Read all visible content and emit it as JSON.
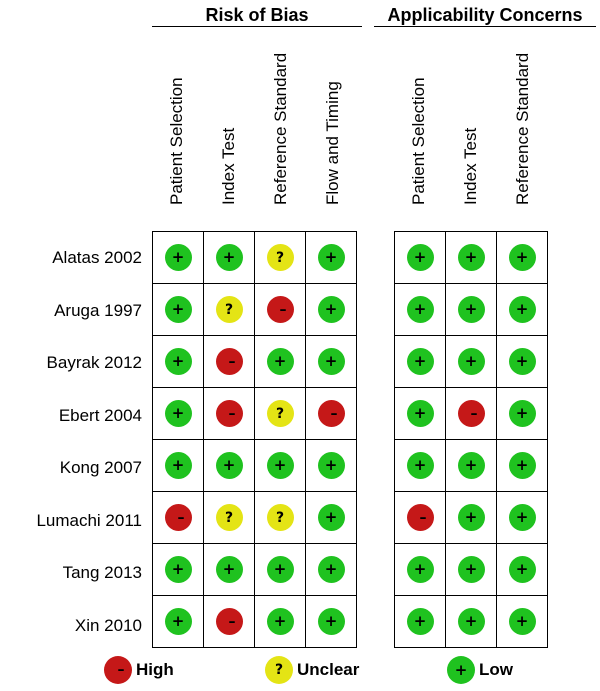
{
  "groups": {
    "risk_of_bias": "Risk of Bias",
    "applicability": "Applicability Concerns"
  },
  "rob_columns": [
    "Patient Selection",
    "Index Test",
    "Reference Standard",
    "Flow and Timing"
  ],
  "app_columns": [
    "Patient Selection",
    "Index Test",
    "Reference Standard"
  ],
  "studies": [
    {
      "name": "Alatas 2002",
      "rob": [
        "low",
        "low",
        "unclear",
        "low"
      ],
      "app": [
        "low",
        "low",
        "low"
      ]
    },
    {
      "name": "Aruga 1997",
      "rob": [
        "low",
        "unclear",
        "high",
        "low"
      ],
      "app": [
        "low",
        "low",
        "low"
      ]
    },
    {
      "name": "Bayrak 2012",
      "rob": [
        "low",
        "high",
        "low",
        "low"
      ],
      "app": [
        "low",
        "low",
        "low"
      ]
    },
    {
      "name": "Ebert 2004",
      "rob": [
        "low",
        "high",
        "unclear",
        "high"
      ],
      "app": [
        "low",
        "high",
        "low"
      ]
    },
    {
      "name": "Kong 2007",
      "rob": [
        "low",
        "low",
        "low",
        "low"
      ],
      "app": [
        "low",
        "low",
        "low"
      ]
    },
    {
      "name": "Lumachi 2011",
      "rob": [
        "high",
        "unclear",
        "unclear",
        "low"
      ],
      "app": [
        "high",
        "low",
        "low"
      ]
    },
    {
      "name": "Tang 2013",
      "rob": [
        "low",
        "low",
        "low",
        "low"
      ],
      "app": [
        "low",
        "low",
        "low"
      ]
    },
    {
      "name": "Xin 2010",
      "rob": [
        "low",
        "high",
        "low",
        "low"
      ],
      "app": [
        "low",
        "low",
        "low"
      ]
    }
  ],
  "symbols": {
    "low": "+",
    "high": "–",
    "unclear": "?"
  },
  "legend": {
    "high": "High",
    "unclear": "Unclear",
    "low": "Low"
  },
  "colors": {
    "low": "#1fc21f",
    "high": "#c51818",
    "unclear": "#e4e415"
  }
}
